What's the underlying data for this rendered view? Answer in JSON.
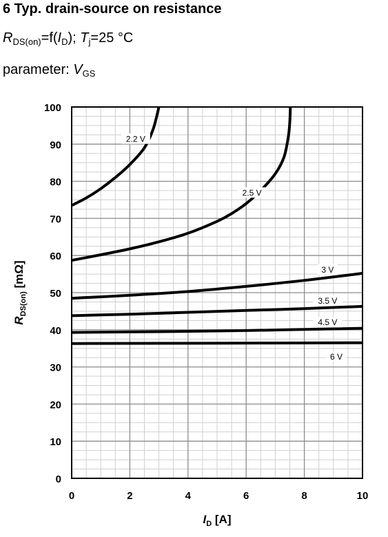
{
  "header": {
    "title": "6 Typ. drain-source on resistance",
    "line1": {
      "r": "R",
      "r_sub": "DS(on)",
      "mid": "=f(",
      "i": "I",
      "i_sub": "D",
      "mid2": "); ",
      "t": "T",
      "t_sub": "j",
      "end": "=25 °C"
    },
    "line2": {
      "prefix": "parameter: ",
      "v": "V",
      "v_sub": "GS"
    }
  },
  "chart_data": {
    "type": "line",
    "x_ticks": [
      "0",
      "2",
      "4",
      "6",
      "8",
      "10"
    ],
    "y_ticks": [
      "0",
      "10",
      "20",
      "30",
      "40",
      "50",
      "60",
      "70",
      "80",
      "90",
      "100"
    ],
    "xlim": [
      0,
      10
    ],
    "ylim": [
      0,
      100
    ],
    "grid": true,
    "xlabel": {
      "sym": "I",
      "sub": "D",
      "unit": " [A]"
    },
    "ylabel": {
      "sym": "R",
      "sub": "DS(on)",
      "unit": "  [mΩ]"
    },
    "series": [
      {
        "name": "2.2 V",
        "points": [
          [
            0,
            73.5
          ],
          [
            0.5,
            75.5
          ],
          [
            1,
            78
          ],
          [
            1.5,
            81
          ],
          [
            2,
            84.5
          ],
          [
            2.5,
            89
          ],
          [
            2.8,
            94
          ],
          [
            3,
            100
          ]
        ],
        "label_at": [
          2.2,
          91
        ]
      },
      {
        "name": "2.5 V",
        "points": [
          [
            0,
            58.7
          ],
          [
            1,
            60.2
          ],
          [
            2,
            61.8
          ],
          [
            3,
            63.7
          ],
          [
            4,
            66
          ],
          [
            5,
            69.2
          ],
          [
            5.5,
            71.3
          ],
          [
            6,
            74
          ],
          [
            6.5,
            77.5
          ],
          [
            7,
            82
          ],
          [
            7.3,
            86.5
          ],
          [
            7.45,
            92
          ],
          [
            7.5,
            96
          ],
          [
            7.52,
            100
          ]
        ],
        "label_at": [
          6.2,
          76.5
        ]
      },
      {
        "name": "3 V",
        "points": [
          [
            0,
            48.5
          ],
          [
            2,
            49.3
          ],
          [
            4,
            50.3
          ],
          [
            6,
            51.7
          ],
          [
            8,
            53.3
          ],
          [
            10,
            55.2
          ]
        ],
        "label_at": [
          8.8,
          55.8
        ]
      },
      {
        "name": "3.5 V",
        "points": [
          [
            0,
            43.8
          ],
          [
            2,
            44.2
          ],
          [
            4,
            44.7
          ],
          [
            6,
            45.2
          ],
          [
            8,
            45.7
          ],
          [
            10,
            46.3
          ]
        ],
        "label_at": [
          8.8,
          47.4
        ]
      },
      {
        "name": "4.5 V",
        "points": [
          [
            0,
            39.3
          ],
          [
            3,
            39.5
          ],
          [
            6,
            39.8
          ],
          [
            8,
            40.1
          ],
          [
            10,
            40.4
          ]
        ],
        "label_at": [
          8.8,
          41.6
        ]
      },
      {
        "name": "6 V",
        "points": [
          [
            0,
            36.3
          ],
          [
            5,
            36.4
          ],
          [
            10,
            36.5
          ]
        ],
        "label_at": [
          9.1,
          32.3
        ]
      }
    ]
  }
}
